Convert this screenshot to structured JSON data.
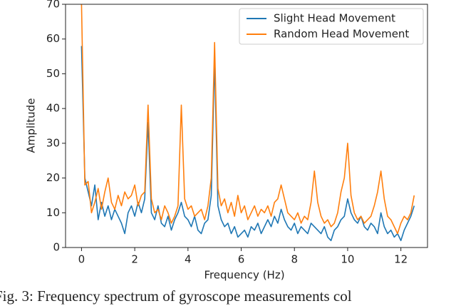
{
  "chart_data": {
    "type": "line",
    "xlabel": "Frequency (Hz)",
    "ylabel": "Amplitude",
    "caption": "Fig. 3: Frequency spectrum of gyroscope measurements col",
    "x": [
      0,
      0.125,
      0.25,
      0.375,
      0.5,
      0.625,
      0.75,
      0.875,
      1,
      1.125,
      1.25,
      1.375,
      1.5,
      1.625,
      1.75,
      1.875,
      2,
      2.125,
      2.25,
      2.375,
      2.5,
      2.625,
      2.75,
      2.875,
      3,
      3.125,
      3.25,
      3.375,
      3.5,
      3.625,
      3.75,
      3.875,
      4,
      4.125,
      4.25,
      4.375,
      4.5,
      4.625,
      4.75,
      4.875,
      5,
      5.125,
      5.25,
      5.375,
      5.5,
      5.625,
      5.75,
      5.875,
      6,
      6.125,
      6.25,
      6.375,
      6.5,
      6.625,
      6.75,
      6.875,
      7,
      7.125,
      7.25,
      7.375,
      7.5,
      7.625,
      7.75,
      7.875,
      8,
      8.125,
      8.25,
      8.375,
      8.5,
      8.625,
      8.75,
      8.875,
      9,
      9.125,
      9.25,
      9.375,
      9.5,
      9.625,
      9.75,
      9.875,
      10,
      10.125,
      10.25,
      10.375,
      10.5,
      10.625,
      10.75,
      10.875,
      11,
      11.125,
      11.25,
      11.375,
      11.5,
      11.625,
      11.75,
      11.875,
      12,
      12.125,
      12.25,
      12.375,
      12.5
    ],
    "series": [
      {
        "name": "Slight Head Movement",
        "color": "#1f77b4",
        "values": [
          58,
          20,
          16,
          12,
          18,
          8,
          13,
          9,
          12,
          8,
          11,
          9,
          7,
          4,
          10,
          12,
          9,
          13,
          10,
          14,
          36,
          10,
          8,
          12,
          7,
          6,
          9,
          5,
          8,
          10,
          13,
          9,
          8,
          6,
          9,
          5,
          4,
          7,
          8,
          15,
          54,
          12,
          8,
          6,
          7,
          4,
          6,
          3,
          4,
          5,
          3,
          6,
          5,
          7,
          4,
          6,
          8,
          6,
          9,
          7,
          11,
          8,
          6,
          5,
          7,
          4,
          6,
          5,
          4,
          7,
          6,
          5,
          4,
          6,
          3,
          2,
          5,
          6,
          8,
          9,
          14,
          10,
          8,
          7,
          9,
          6,
          5,
          7,
          6,
          4,
          10,
          6,
          4,
          5,
          3,
          4,
          2,
          5,
          7,
          9,
          12
        ]
      },
      {
        "name": "Random Head Movement",
        "color": "#ff7f0e",
        "values": [
          70,
          18,
          19,
          10,
          13,
          17,
          11,
          16,
          20,
          13,
          11,
          15,
          12,
          16,
          14,
          15,
          18,
          12,
          15,
          16,
          41,
          14,
          10,
          11,
          8,
          12,
          10,
          7,
          9,
          12,
          41,
          14,
          11,
          12,
          9,
          10,
          11,
          8,
          12,
          20,
          59,
          17,
          12,
          14,
          10,
          13,
          9,
          15,
          10,
          12,
          8,
          10,
          12,
          9,
          11,
          10,
          12,
          9,
          13,
          14,
          18,
          14,
          10,
          9,
          8,
          10,
          7,
          9,
          8,
          13,
          22,
          13,
          9,
          7,
          8,
          6,
          7,
          10,
          16,
          20,
          30,
          15,
          10,
          8,
          9,
          7,
          8,
          9,
          12,
          16,
          22,
          14,
          9,
          8,
          6,
          4,
          7,
          9,
          8,
          10,
          15
        ]
      }
    ],
    "xlim": [
      -0.6,
      13.0
    ],
    "ylim": [
      0,
      70
    ],
    "xticks": [
      0,
      2,
      4,
      6,
      8,
      10,
      12
    ],
    "yticks": [
      0,
      10,
      20,
      30,
      40,
      50,
      60,
      70
    ],
    "legend": "upper right"
  }
}
